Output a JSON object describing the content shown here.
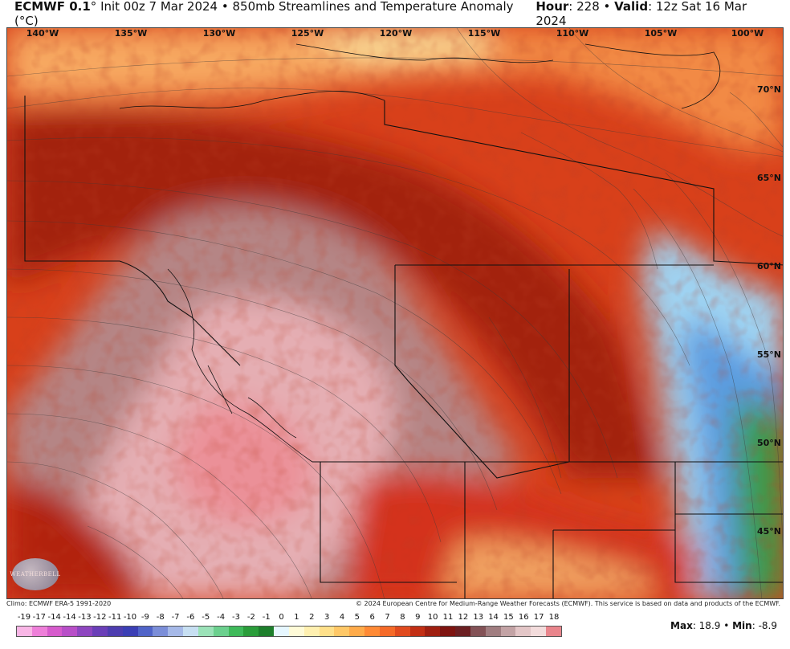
{
  "header": {
    "model": "ECMWF 0.1",
    "degree": "°",
    "init": "Init 00z 7 Mar 2024",
    "product": "850mb Streamlines and Temperature Anomaly (°C)",
    "hour_label": "Hour",
    "hour_value": ": 228",
    "valid_label": "Valid",
    "valid_value": ": 12z Sat 16 Mar 2024"
  },
  "map": {
    "lon_labels": [
      "140°W",
      "135°W",
      "130°W",
      "125°W",
      "120°W",
      "115°W",
      "110°W",
      "105°W",
      "100°W"
    ],
    "lat_labels": [
      "70°N",
      "65°N",
      "60°N",
      "55°N",
      "50°N",
      "45°N"
    ],
    "logo_text": "WEATHERBELL"
  },
  "footer": {
    "climo": "Climo: ECMWF ERA-5 1991-2020",
    "copyright": "© 2024 European Centre for Medium-Range Weather Forecasts (ECMWF). This service is based on data and products of the ECMWF."
  },
  "scale": {
    "ticks": [
      "-19",
      "-17",
      "-14",
      "-14",
      "-13",
      "-12",
      "-11",
      "-10",
      "-9",
      "-8",
      "-7",
      "-6",
      "-5",
      "-4",
      "-3",
      "-2",
      "-1",
      "0",
      "1",
      "2",
      "3",
      "4",
      "5",
      "6",
      "7",
      "8",
      "9",
      "10",
      "11",
      "12",
      "13",
      "14",
      "15",
      "16",
      "17",
      "18"
    ],
    "colors": [
      "#f9b6e6",
      "#ee7fd9",
      "#d65bcc",
      "#b84fc8",
      "#8e46c0",
      "#6a3fb8",
      "#4d3db0",
      "#3b3fb5",
      "#5064c8",
      "#7b8ed8",
      "#a6b9e8",
      "#c7dff2",
      "#9be2b8",
      "#6bd08e",
      "#3fba5a",
      "#2a9d3a",
      "#1d7f2c",
      "#e6f7ff",
      "#fffbd8",
      "#fff0b0",
      "#ffe08a",
      "#ffc867",
      "#ffab4a",
      "#ff8a35",
      "#f56a28",
      "#e04a1e",
      "#c22f14",
      "#9f1f10",
      "#7e1410",
      "#6b1f22",
      "#835256",
      "#a07d80",
      "#c3a3a5",
      "#e3c6c7",
      "#f3dcdc",
      "#e9858c"
    ],
    "max_label": "Max",
    "max_value": ": 18.9",
    "sep": " • ",
    "min_label": "Min",
    "min_value": ": -8.9"
  }
}
